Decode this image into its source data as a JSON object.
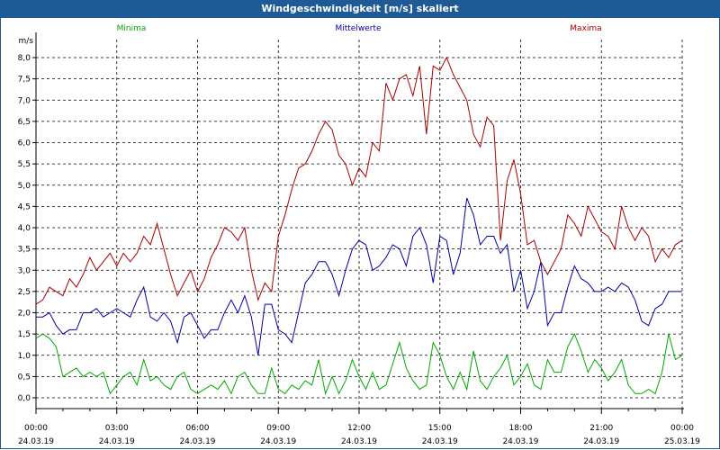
{
  "title": "Windgeschwindigkeit [m/s] skaliert",
  "chart_data": {
    "type": "line",
    "ylabel": "m/s",
    "ylim": [
      0,
      8.0
    ],
    "yticks": [
      "0,0",
      "0,5",
      "1,0",
      "1,5",
      "2,0",
      "2,5",
      "3,0",
      "3,5",
      "4,0",
      "4,5",
      "5,0",
      "5,5",
      "6,0",
      "6,5",
      "7,0",
      "7,5",
      "8,0"
    ],
    "xticks": [
      {
        "time": "00:00",
        "date": "24.03.19"
      },
      {
        "time": "03:00",
        "date": "24.03.19"
      },
      {
        "time": "06:00",
        "date": "24.03.19"
      },
      {
        "time": "09:00",
        "date": "24.03.19"
      },
      {
        "time": "12:00",
        "date": "24.03.19"
      },
      {
        "time": "15:00",
        "date": "24.03.19"
      },
      {
        "time": "18:00",
        "date": "24.03.19"
      },
      {
        "time": "21:00",
        "date": "24.03.19"
      },
      {
        "time": "00:00",
        "date": "25.03.19"
      }
    ],
    "grid": true,
    "series": [
      {
        "name": "Minima",
        "color": "#00aa00",
        "x": [
          0.0,
          0.25,
          0.5,
          0.75,
          1.0,
          1.25,
          1.5,
          1.75,
          2.0,
          2.25,
          2.5,
          2.75,
          3.0,
          3.25,
          3.5,
          3.75,
          4.0,
          4.25,
          4.5,
          4.75,
          5.0,
          5.25,
          5.5,
          5.75,
          6.0,
          6.25,
          6.5,
          6.75,
          7.0,
          7.25,
          7.5,
          7.75,
          8.0,
          8.25,
          8.5,
          8.75,
          9.0,
          9.25,
          9.5,
          9.75,
          10.0,
          10.25,
          10.5,
          10.75,
          11.0,
          11.25,
          11.5,
          11.75,
          12.0,
          12.25,
          12.5,
          12.75,
          13.0,
          13.25,
          13.5,
          13.75,
          14.0,
          14.25,
          14.5,
          14.75,
          15.0,
          15.25,
          15.5,
          15.75,
          16.0,
          16.25,
          16.5,
          16.75,
          17.0,
          17.25,
          17.5,
          17.75,
          18.0,
          18.25,
          18.5,
          18.75,
          19.0,
          19.25,
          19.5,
          19.75,
          20.0,
          20.25,
          20.5,
          20.75,
          21.0,
          21.25,
          21.5,
          21.75,
          22.0,
          22.25,
          22.5,
          22.75,
          23.0,
          23.25,
          23.5,
          23.75,
          24.0
        ],
        "values": [
          1.4,
          1.5,
          1.4,
          1.2,
          0.5,
          0.6,
          0.7,
          0.5,
          0.6,
          0.5,
          0.6,
          0.1,
          0.3,
          0.5,
          0.6,
          0.3,
          0.9,
          0.4,
          0.5,
          0.3,
          0.2,
          0.5,
          0.6,
          0.2,
          0.1,
          0.2,
          0.3,
          0.2,
          0.4,
          0.1,
          0.5,
          0.6,
          0.3,
          0.1,
          0.1,
          0.7,
          0.2,
          0.1,
          0.3,
          0.2,
          0.4,
          0.3,
          0.9,
          0.1,
          0.5,
          0.1,
          0.4,
          0.9,
          0.5,
          0.2,
          0.6,
          0.2,
          0.3,
          0.8,
          1.3,
          0.7,
          0.4,
          0.2,
          0.3,
          1.3,
          1.0,
          0.5,
          0.2,
          0.6,
          0.2,
          1.1,
          0.4,
          0.2,
          0.5,
          0.7,
          1.0,
          0.3,
          0.5,
          0.8,
          0.3,
          0.2,
          0.9,
          0.6,
          0.6,
          1.2,
          1.5,
          1.1,
          0.6,
          0.9,
          0.7,
          0.4,
          0.6,
          0.9,
          0.3,
          0.1,
          0.1,
          0.2,
          0.1,
          0.6,
          1.5,
          0.9,
          1.0
        ]
      },
      {
        "name": "Mittelwerte",
        "color": "#0000aa",
        "x": [
          0.0,
          0.25,
          0.5,
          0.75,
          1.0,
          1.25,
          1.5,
          1.75,
          2.0,
          2.25,
          2.5,
          2.75,
          3.0,
          3.25,
          3.5,
          3.75,
          4.0,
          4.25,
          4.5,
          4.75,
          5.0,
          5.25,
          5.5,
          5.75,
          6.0,
          6.25,
          6.5,
          6.75,
          7.0,
          7.25,
          7.5,
          7.75,
          8.0,
          8.25,
          8.5,
          8.75,
          9.0,
          9.25,
          9.5,
          9.75,
          10.0,
          10.25,
          10.5,
          10.75,
          11.0,
          11.25,
          11.5,
          11.75,
          12.0,
          12.25,
          12.5,
          12.75,
          13.0,
          13.25,
          13.5,
          13.75,
          14.0,
          14.25,
          14.5,
          14.75,
          15.0,
          15.25,
          15.5,
          15.75,
          16.0,
          16.25,
          16.5,
          16.75,
          17.0,
          17.25,
          17.5,
          17.75,
          18.0,
          18.25,
          18.5,
          18.75,
          19.0,
          19.25,
          19.5,
          19.75,
          20.0,
          20.25,
          20.5,
          20.75,
          21.0,
          21.25,
          21.5,
          21.75,
          22.0,
          22.25,
          22.5,
          22.75,
          23.0,
          23.25,
          23.5,
          23.75,
          24.0
        ],
        "values": [
          1.9,
          1.9,
          2.0,
          1.7,
          1.5,
          1.6,
          1.6,
          2.0,
          2.0,
          2.1,
          1.9,
          2.0,
          2.1,
          2.0,
          1.9,
          2.3,
          2.6,
          1.9,
          1.8,
          2.0,
          1.8,
          1.3,
          1.9,
          2.0,
          1.7,
          1.4,
          1.6,
          1.6,
          2.0,
          2.3,
          2.0,
          2.4,
          1.9,
          1.0,
          2.2,
          2.2,
          1.6,
          1.5,
          1.3,
          2.0,
          2.7,
          2.9,
          3.2,
          3.2,
          2.9,
          2.4,
          3.0,
          3.5,
          3.7,
          3.6,
          3.0,
          3.1,
          3.3,
          3.6,
          3.5,
          3.1,
          3.8,
          4.0,
          3.6,
          2.7,
          3.8,
          3.7,
          2.9,
          3.4,
          4.7,
          4.3,
          3.6,
          3.8,
          3.8,
          3.4,
          3.6,
          2.5,
          3.0,
          2.1,
          2.5,
          3.2,
          1.7,
          2.0,
          2.0,
          2.6,
          3.1,
          2.8,
          2.7,
          2.5,
          2.5,
          2.6,
          2.5,
          2.7,
          2.6,
          2.3,
          1.8,
          1.7,
          2.1,
          2.2,
          2.5,
          2.5,
          2.5
        ]
      },
      {
        "name": "Maxima",
        "color": "#aa0000",
        "x": [
          0.0,
          0.25,
          0.5,
          0.75,
          1.0,
          1.25,
          1.5,
          1.75,
          2.0,
          2.25,
          2.5,
          2.75,
          3.0,
          3.25,
          3.5,
          3.75,
          4.0,
          4.25,
          4.5,
          4.75,
          5.0,
          5.25,
          5.5,
          5.75,
          6.0,
          6.25,
          6.5,
          6.75,
          7.0,
          7.25,
          7.5,
          7.75,
          8.0,
          8.25,
          8.5,
          8.75,
          9.0,
          9.25,
          9.5,
          9.75,
          10.0,
          10.25,
          10.5,
          10.75,
          11.0,
          11.25,
          11.5,
          11.75,
          12.0,
          12.25,
          12.5,
          12.75,
          13.0,
          13.25,
          13.5,
          13.75,
          14.0,
          14.25,
          14.5,
          14.75,
          15.0,
          15.25,
          15.5,
          15.75,
          16.0,
          16.25,
          16.5,
          16.75,
          17.0,
          17.25,
          17.5,
          17.75,
          18.0,
          18.25,
          18.5,
          18.75,
          19.0,
          19.25,
          19.5,
          19.75,
          20.0,
          20.25,
          20.5,
          20.75,
          21.0,
          21.25,
          21.5,
          21.75,
          22.0,
          22.25,
          22.5,
          22.75,
          23.0,
          23.25,
          23.5,
          23.75,
          24.0
        ],
        "values": [
          2.2,
          2.3,
          2.6,
          2.5,
          2.4,
          2.8,
          2.6,
          2.9,
          3.3,
          3.0,
          3.2,
          3.4,
          3.1,
          3.4,
          3.2,
          3.4,
          3.8,
          3.6,
          4.1,
          3.5,
          2.9,
          2.4,
          2.7,
          3.0,
          2.5,
          2.8,
          3.3,
          3.6,
          4.0,
          3.9,
          3.7,
          4.0,
          3.0,
          2.3,
          2.7,
          2.5,
          3.8,
          4.3,
          4.9,
          5.4,
          5.5,
          5.8,
          6.2,
          6.5,
          6.3,
          5.7,
          5.5,
          5.0,
          5.4,
          5.2,
          6.0,
          5.8,
          7.4,
          7.0,
          7.5,
          7.6,
          7.1,
          7.8,
          6.2,
          7.8,
          7.7,
          8.0,
          7.6,
          7.3,
          7.0,
          6.2,
          5.9,
          6.6,
          6.4,
          3.7,
          5.1,
          5.6,
          4.8,
          3.6,
          3.7,
          3.2,
          2.9,
          3.2,
          3.5,
          4.3,
          4.1,
          3.8,
          4.5,
          4.2,
          3.9,
          3.8,
          3.5,
          4.5,
          4.0,
          3.7,
          4.0,
          3.8,
          3.2,
          3.5,
          3.3,
          3.6,
          3.7
        ]
      }
    ]
  }
}
